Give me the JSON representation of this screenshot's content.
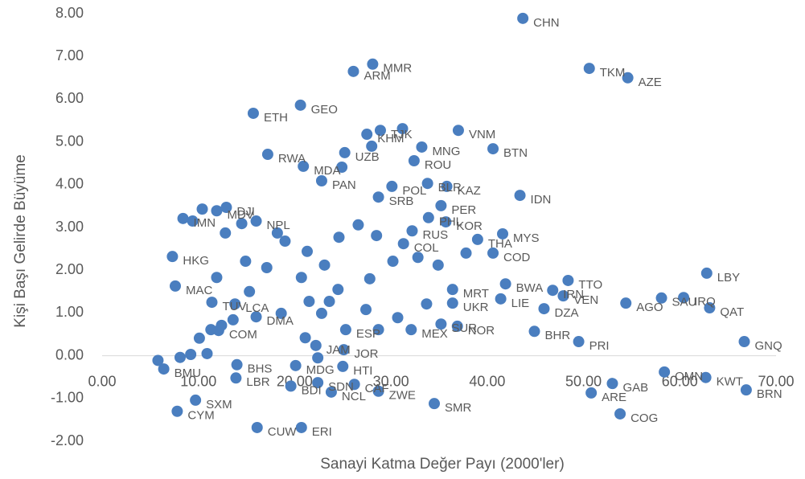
{
  "chart_data": {
    "type": "scatter",
    "x_label": "Sanayi Katma Değer Payı (2000'ler)",
    "y_label": "Kişi Başı Gelirde Büyüme",
    "color": "#4a7ebf",
    "xlim": [
      0,
      70
    ],
    "ylim": [
      -2,
      8
    ],
    "xticks": [
      {
        "value": 0,
        "label": "0.00"
      },
      {
        "value": 10,
        "label": "10.00"
      },
      {
        "value": 20,
        "label": "20.00"
      },
      {
        "value": 30,
        "label": "30.00"
      },
      {
        "value": 40,
        "label": "40.00"
      },
      {
        "value": 50,
        "label": "50.00"
      },
      {
        "value": 60,
        "label": "60.00"
      },
      {
        "value": 70,
        "label": "70.00"
      }
    ],
    "yticks": [
      {
        "value": -2,
        "label": "-2.00"
      },
      {
        "value": -1,
        "label": "-1.00"
      },
      {
        "value": 0,
        "label": "0.00"
      },
      {
        "value": 1,
        "label": "1.00"
      },
      {
        "value": 2,
        "label": "2.00"
      },
      {
        "value": 3,
        "label": "3.00"
      },
      {
        "value": 4,
        "label": "4.00"
      },
      {
        "value": 5,
        "label": "5.00"
      },
      {
        "value": 6,
        "label": "6.00"
      },
      {
        "value": 7,
        "label": "7.00"
      },
      {
        "value": 8,
        "label": "8.00"
      }
    ],
    "labels": [
      "CHN",
      "TKM",
      "AZE",
      "MMR",
      "ARM",
      "GEO",
      "ETH",
      "VNM",
      "TJK",
      "KHM",
      "BTN",
      "MNG",
      "RWA",
      "UZB",
      "ROU",
      "MDA",
      "KAZ",
      "BLR",
      "IDN",
      "PAN",
      "POL",
      "SRB",
      "PER",
      "DJI",
      "MDV",
      "IMN",
      "NPL",
      "KOR",
      "PHL",
      "MYS",
      "RUS",
      "THA",
      "COD",
      "COL",
      "HKG",
      "LBY",
      "TTO",
      "MAC",
      "BWA",
      "IRN",
      "IRQ",
      "SAU",
      "VEN",
      "AGO",
      "QAT",
      "DZA",
      "LIE",
      "MRT",
      "UKR",
      "GNQ",
      "BHR",
      "PRI",
      "NOR",
      "SUR",
      "MEX",
      "JOR",
      "HTI",
      "MDG",
      "OMN",
      "KWT",
      "BRN",
      "GAB",
      "ARE",
      "COG",
      "SMR",
      "CUW",
      "ERI",
      "CYM",
      "SXM",
      "LBR",
      "BHS",
      "BMU",
      "BDI",
      "CAF",
      "NCL",
      "ZWE",
      "SDN",
      "ESP",
      "LCA",
      "DMA",
      "COM",
      "TUV",
      "JAM",
      null,
      null,
      null,
      null,
      null,
      null,
      null,
      null,
      null,
      null,
      null,
      null,
      null,
      null,
      null,
      null,
      null,
      null,
      null,
      null,
      null,
      null,
      null,
      null,
      null,
      null,
      null,
      null,
      null,
      null,
      null,
      null,
      null,
      null,
      null,
      null,
      null
    ],
    "x": [
      43.7,
      50.6,
      54.6,
      28.1,
      26.1,
      20.6,
      15.7,
      37.0,
      28.9,
      27.5,
      40.6,
      33.2,
      17.2,
      25.2,
      32.4,
      20.9,
      35.8,
      33.8,
      43.4,
      22.8,
      30.1,
      28.7,
      35.2,
      12.9,
      11.9,
      8.4,
      16.0,
      35.7,
      33.9,
      41.6,
      32.2,
      39.0,
      40.6,
      31.3,
      7.3,
      62.8,
      48.4,
      7.6,
      41.9,
      46.8,
      60.4,
      58.1,
      47.9,
      54.4,
      63.1,
      45.9,
      41.4,
      36.4,
      36.4,
      66.7,
      44.9,
      49.5,
      36.9,
      35.2,
      32.1,
      25.1,
      25.0,
      20.1,
      58.4,
      62.7,
      66.9,
      53.0,
      50.8,
      53.8,
      34.5,
      16.1,
      20.7,
      7.8,
      9.7,
      13.9,
      14.0,
      6.4,
      19.6,
      26.2,
      23.8,
      28.7,
      22.4,
      25.3,
      13.8,
      16.0,
      12.1,
      11.4,
      22.2,
      5.8,
      8.1,
      9.2,
      10.9,
      10.1,
      11.3,
      12.4,
      13.6,
      15.3,
      17.1,
      14.9,
      19.0,
      21.3,
      23.1,
      24.6,
      26.6,
      28.5,
      30.2,
      32.8,
      37.8,
      34.9,
      27.8,
      24.5,
      21.5,
      18.6,
      21.1,
      23.6,
      27.4,
      30.7,
      33.7,
      22.4,
      28.7,
      11.9,
      10.4,
      9.4,
      12.8,
      14.5,
      18.2,
      22.8,
      20.7,
      24.9,
      28.0,
      31.2
    ],
    "y": [
      7.89,
      6.72,
      6.5,
      6.82,
      6.65,
      5.86,
      5.67,
      5.27,
      5.27,
      5.18,
      4.84,
      4.88,
      4.71,
      4.75,
      4.56,
      4.43,
      3.96,
      4.03,
      3.75,
      4.09,
      3.96,
      3.71,
      3.51,
      3.47,
      3.39,
      3.21,
      3.15,
      3.13,
      3.23,
      2.85,
      2.92,
      2.72,
      2.4,
      2.62,
      2.32,
      1.93,
      1.76,
      1.63,
      1.68,
      1.53,
      1.36,
      1.35,
      1.4,
      1.23,
      1.12,
      1.1,
      1.33,
      1.55,
      1.23,
      0.33,
      0.57,
      0.33,
      0.69,
      0.74,
      0.61,
      0.14,
      -0.25,
      -0.23,
      -0.38,
      -0.51,
      -0.8,
      -0.65,
      -0.87,
      -1.36,
      -1.12,
      -1.68,
      -1.68,
      -1.3,
      -1.04,
      -0.52,
      -0.21,
      -0.31,
      -0.71,
      -0.67,
      -0.85,
      -0.83,
      -0.63,
      0.61,
      1.21,
      0.91,
      0.59,
      1.25,
      0.24,
      -0.11,
      -0.04,
      0.03,
      0.05,
      0.41,
      0.61,
      0.71,
      0.84,
      1.5,
      2.06,
      2.21,
      2.68,
      2.44,
      2.12,
      2.77,
      3.06,
      2.81,
      2.21,
      2.3,
      2.4,
      2.12,
      1.8,
      1.55,
      1.27,
      0.99,
      0.42,
      1.27,
      1.08,
      0.89,
      1.21,
      -0.05,
      0.61,
      1.83,
      3.43,
      3.15,
      2.87,
      3.09,
      2.87,
      0.99,
      1.83,
      4.41,
      4.9,
      5.31
    ]
  }
}
